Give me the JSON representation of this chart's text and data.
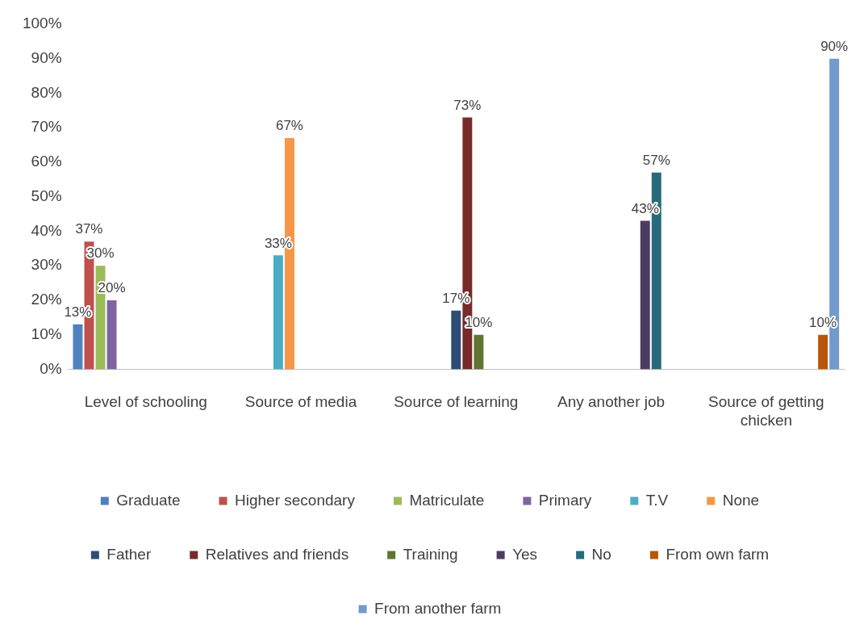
{
  "chart_data": {
    "type": "bar",
    "categories": [
      "Level of schooling",
      "Source of media",
      "Source of learning",
      "Any another job",
      "Source of getting chicken"
    ],
    "ylim": [
      0,
      100
    ],
    "yticks": [
      {
        "value": 0,
        "label": "0%"
      },
      {
        "value": 10,
        "label": "10%"
      },
      {
        "value": 20,
        "label": "20%"
      },
      {
        "value": 30,
        "label": "30%"
      },
      {
        "value": 40,
        "label": "40%"
      },
      {
        "value": 50,
        "label": "50%"
      },
      {
        "value": 60,
        "label": "60%"
      },
      {
        "value": 70,
        "label": "70%"
      },
      {
        "value": 80,
        "label": "80%"
      },
      {
        "value": 90,
        "label": "90%"
      },
      {
        "value": 100,
        "label": "100%"
      }
    ],
    "grid": false,
    "legend": "bottom",
    "series": [
      {
        "name": "Graduate",
        "color": "#4f81bd",
        "values": [
          13,
          null,
          null,
          null,
          null
        ],
        "value_labels": [
          "13%",
          null,
          null,
          null,
          null
        ]
      },
      {
        "name": "Higher secondary",
        "color": "#c0504d",
        "values": [
          37,
          null,
          null,
          null,
          null
        ],
        "value_labels": [
          "37%",
          null,
          null,
          null,
          null
        ]
      },
      {
        "name": "Matriculate",
        "color": "#9bbb59",
        "values": [
          30,
          null,
          null,
          null,
          null
        ],
        "value_labels": [
          "30%",
          null,
          null,
          null,
          null
        ]
      },
      {
        "name": "Primary",
        "color": "#8064a2",
        "values": [
          20,
          null,
          null,
          null,
          null
        ],
        "value_labels": [
          "20%",
          null,
          null,
          null,
          null
        ]
      },
      {
        "name": "T.V",
        "color": "#4bacc6",
        "values": [
          null,
          33,
          null,
          null,
          null
        ],
        "value_labels": [
          null,
          "33%",
          null,
          null,
          null
        ]
      },
      {
        "name": "None",
        "color": "#f79646",
        "values": [
          null,
          67,
          null,
          null,
          null
        ],
        "value_labels": [
          null,
          "67%",
          null,
          null,
          null
        ]
      },
      {
        "name": "Father",
        "color": "#2c4d75",
        "values": [
          null,
          null,
          17,
          null,
          null
        ],
        "value_labels": [
          null,
          null,
          "17%",
          null,
          null
        ]
      },
      {
        "name": "Relatives and friends",
        "color": "#772c2a",
        "values": [
          null,
          null,
          73,
          null,
          null
        ],
        "value_labels": [
          null,
          null,
          "73%",
          null,
          null
        ]
      },
      {
        "name": "Training",
        "color": "#5f7530",
        "values": [
          null,
          null,
          10,
          null,
          null
        ],
        "value_labels": [
          null,
          null,
          "10%",
          null,
          null
        ]
      },
      {
        "name": "Yes",
        "color": "#4d3b62",
        "values": [
          null,
          null,
          null,
          43,
          null
        ],
        "value_labels": [
          null,
          null,
          null,
          "43%",
          null
        ]
      },
      {
        "name": "No",
        "color": "#276a7c",
        "values": [
          null,
          null,
          null,
          57,
          null
        ],
        "value_labels": [
          null,
          null,
          null,
          "57%",
          null
        ]
      },
      {
        "name": "From own farm",
        "color": "#b65708",
        "values": [
          null,
          null,
          null,
          null,
          10
        ],
        "value_labels": [
          null,
          null,
          null,
          null,
          "10%"
        ]
      },
      {
        "name": "From another farm",
        "color": "#729aca",
        "values": [
          null,
          null,
          null,
          null,
          90
        ],
        "value_labels": [
          null,
          null,
          null,
          null,
          "90%"
        ]
      }
    ]
  }
}
